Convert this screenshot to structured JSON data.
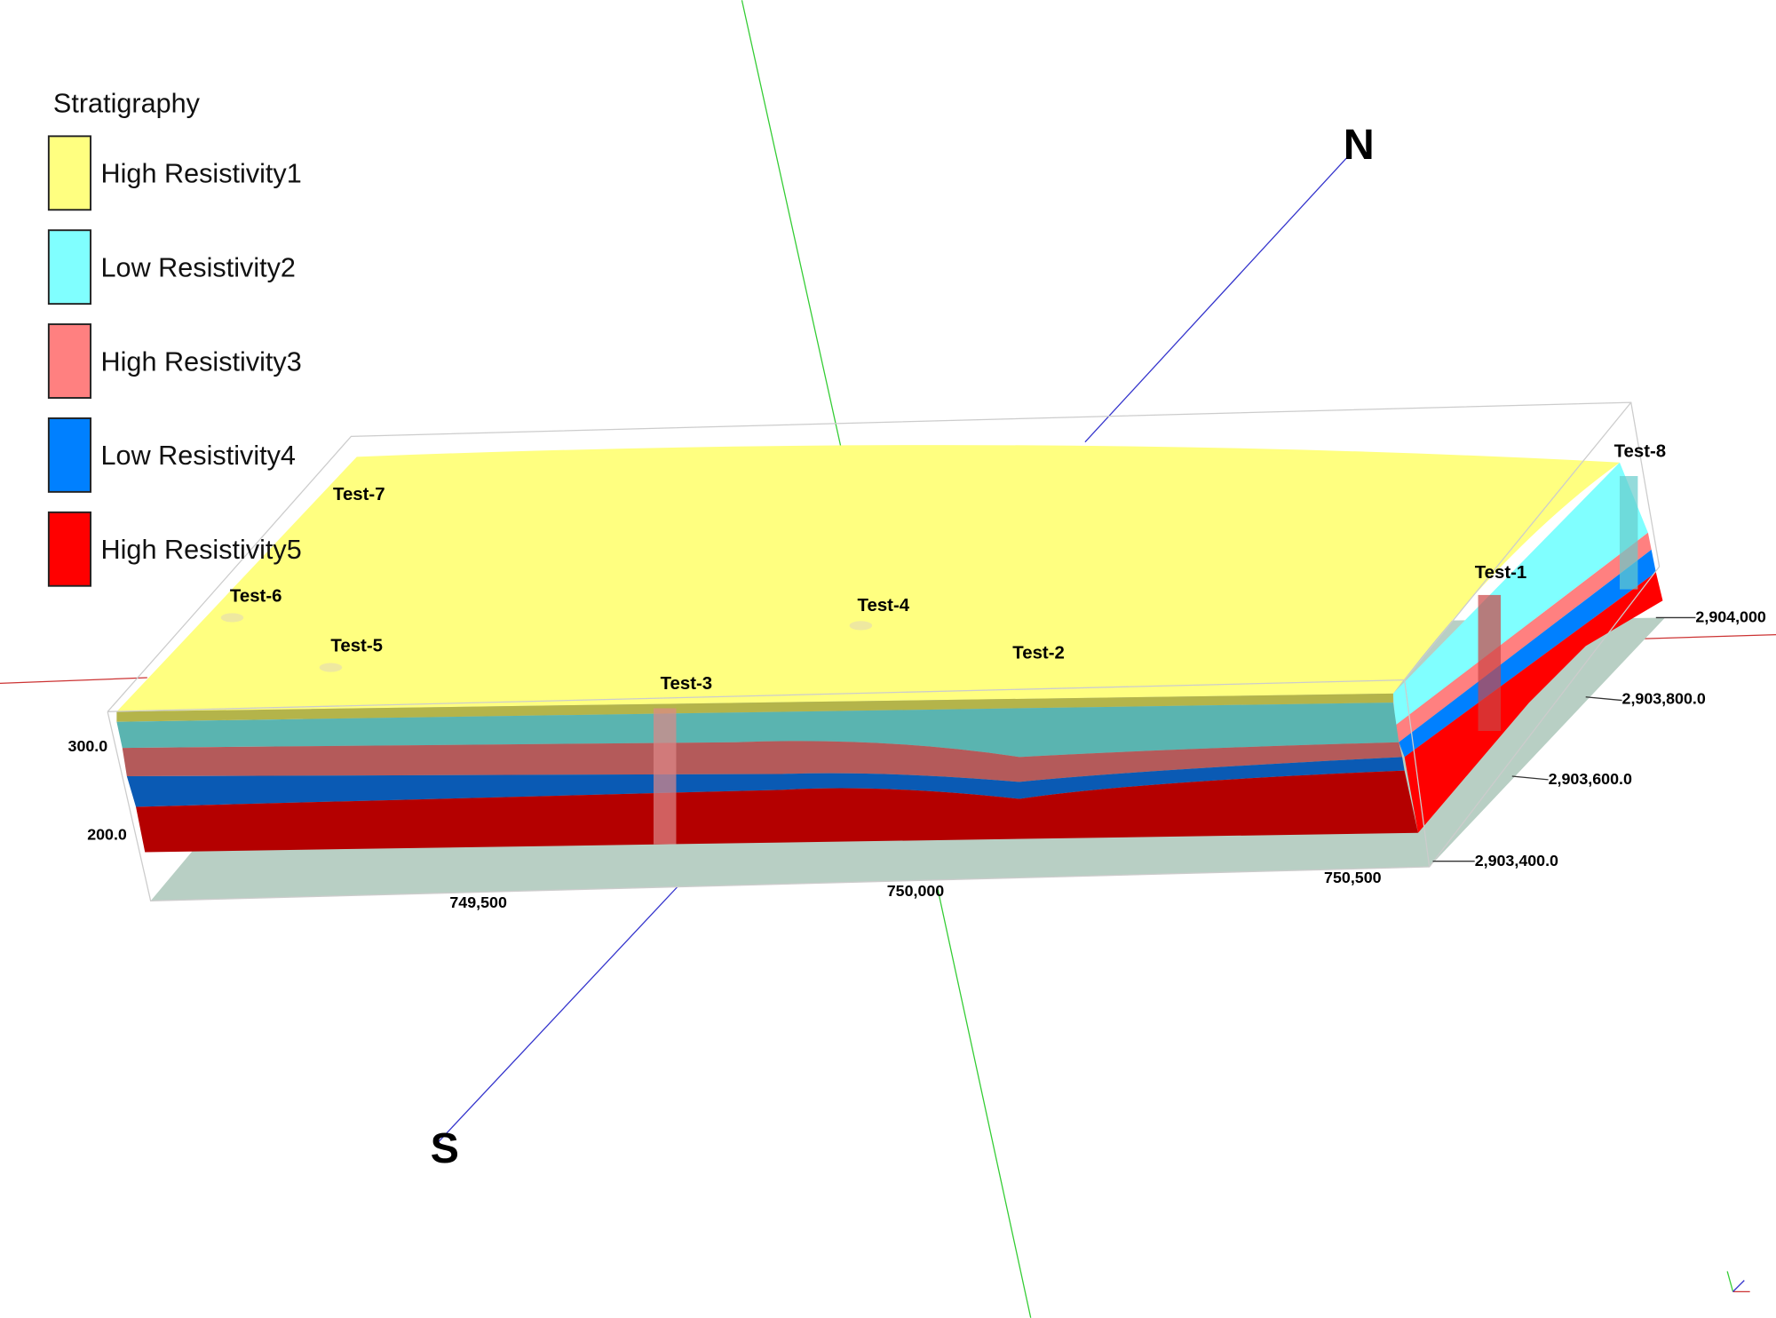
{
  "legend": {
    "title": "Stratigraphy",
    "items": [
      {
        "label": "High Resistivity1",
        "color": "#ffff80"
      },
      {
        "label": "Low Resistivity2",
        "color": "#80ffff"
      },
      {
        "label": "High Resistivity3",
        "color": "#ff8080"
      },
      {
        "label": "Low Resistivity4",
        "color": "#0080ff"
      },
      {
        "label": "High Resistivity5",
        "color": "#ff0000"
      }
    ]
  },
  "wells": [
    "Test-7",
    "Test-6",
    "Test-5",
    "Test-3",
    "Test-4",
    "Test-2",
    "Test-1",
    "Test-8"
  ],
  "axes": {
    "easting": [
      "749,500",
      "750,000",
      "750,500"
    ],
    "northing": [
      "2,904,000",
      "2,903,800.0",
      "2,903,600.0",
      "2,903,400.0"
    ],
    "elevation": [
      "300.0",
      "200.0"
    ]
  },
  "compass": {
    "north": "N",
    "south": "S"
  }
}
